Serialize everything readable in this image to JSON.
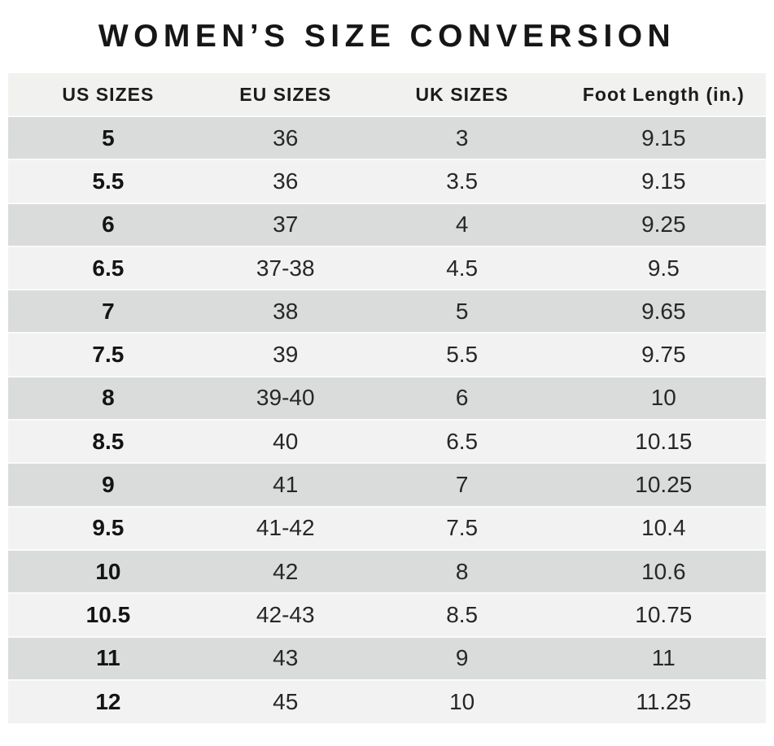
{
  "title": "WOMEN’S SIZE CONVERSION",
  "table": {
    "headers": [
      "US SIZES",
      "EU SIZES",
      "UK SIZES",
      "Foot Length (in.)"
    ],
    "rows": [
      [
        "5",
        "36",
        "3",
        "9.15"
      ],
      [
        "5.5",
        "36",
        "3.5",
        "9.15"
      ],
      [
        "6",
        "37",
        "4",
        "9.25"
      ],
      [
        "6.5",
        "37-38",
        "4.5",
        "9.5"
      ],
      [
        "7",
        "38",
        "5",
        "9.65"
      ],
      [
        "7.5",
        "39",
        "5.5",
        "9.75"
      ],
      [
        "8",
        "39-40",
        "6",
        "10"
      ],
      [
        "8.5",
        "40",
        "6.5",
        "10.15"
      ],
      [
        "9",
        "41",
        "7",
        "10.25"
      ],
      [
        "9.5",
        "41-42",
        "7.5",
        "10.4"
      ],
      [
        "10",
        "42",
        "8",
        "10.6"
      ],
      [
        "10.5",
        "42-43",
        "8.5",
        "10.75"
      ],
      [
        "11",
        "43",
        "9",
        "11"
      ],
      [
        "12",
        "45",
        "10",
        "11.25"
      ]
    ]
  },
  "chart_data": {
    "type": "table",
    "title": "WOMEN’S SIZE CONVERSION",
    "columns": [
      "US SIZES",
      "EU SIZES",
      "UK SIZES",
      "Foot Length (in.)"
    ],
    "rows": [
      [
        "5",
        "36",
        "3",
        "9.15"
      ],
      [
        "5.5",
        "36",
        "3.5",
        "9.15"
      ],
      [
        "6",
        "37",
        "4",
        "9.25"
      ],
      [
        "6.5",
        "37-38",
        "4.5",
        "9.5"
      ],
      [
        "7",
        "38",
        "5",
        "9.65"
      ],
      [
        "7.5",
        "39",
        "5.5",
        "9.75"
      ],
      [
        "8",
        "39-40",
        "6",
        "10"
      ],
      [
        "8.5",
        "40",
        "6.5",
        "10.15"
      ],
      [
        "9",
        "41",
        "7",
        "10.25"
      ],
      [
        "9.5",
        "41-42",
        "7.5",
        "10.4"
      ],
      [
        "10",
        "42",
        "8",
        "10.6"
      ],
      [
        "10.5",
        "42-43",
        "8.5",
        "10.75"
      ],
      [
        "11",
        "43",
        "9",
        "11"
      ],
      [
        "12",
        "45",
        "10",
        "11.25"
      ]
    ],
    "layout_hints": {
      "row_striping": "odd rows dark gray, even rows light gray",
      "first_column_bold": true
    }
  },
  "colors": {
    "page_bg": "#ffffff",
    "header_bg": "#f1f1ef",
    "row_dark_bg": "#dadcdc",
    "row_light_bg": "#f2f2f2",
    "separator": "#fafafa",
    "text": "#1d1d1d"
  }
}
